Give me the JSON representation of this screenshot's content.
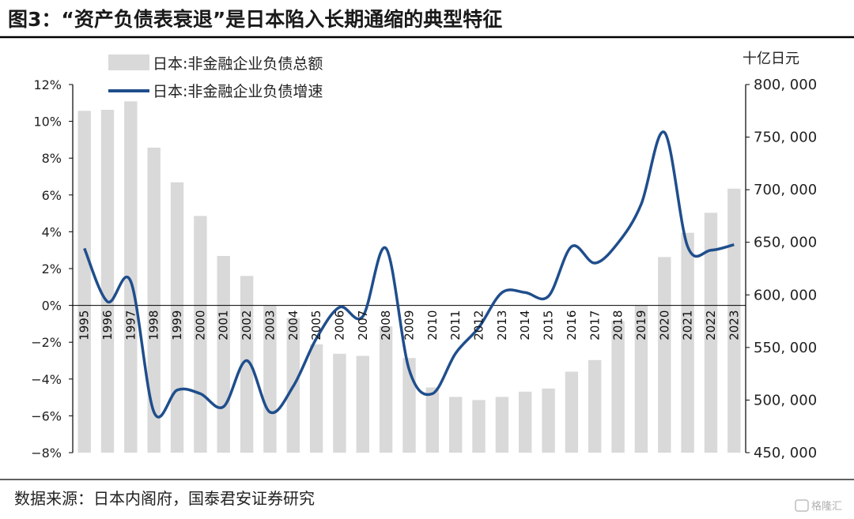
{
  "title": "图3：“资产负债表衰退”是日本陷入长期通缩的典型特征",
  "source": "数据来源：日本内阁府，国泰君安证券研究",
  "watermark": "格隆汇",
  "colors": {
    "bars": "#d9d9d9",
    "line": "#1f4e8c",
    "title_rule": "#000000"
  },
  "chart_data": {
    "type": "bar+line",
    "categories": [
      "1995",
      "1996",
      "1997",
      "1998",
      "1999",
      "2000",
      "2001",
      "2002",
      "2003",
      "2004",
      "2005",
      "2006",
      "2007",
      "2008",
      "2009",
      "2010",
      "2011",
      "2012",
      "2013",
      "2014",
      "2015",
      "2016",
      "2017",
      "2018",
      "2019",
      "2020",
      "2021",
      "2022",
      "2023"
    ],
    "y_left": {
      "ylim": [
        -8,
        12
      ],
      "ticks": [
        "12%",
        "10%",
        "8%",
        "6%",
        "4%",
        "2%",
        "0%",
        "−2%",
        "−4%",
        "−6%",
        "−8%"
      ]
    },
    "y_right": {
      "unit": "十亿日元",
      "ylim": [
        450000,
        800000
      ],
      "ticks": [
        "800, 000",
        "750, 000",
        "700, 000",
        "650, 000",
        "600, 000",
        "550, 000",
        "500, 000",
        "450, 000"
      ]
    },
    "series": [
      {
        "name": "日本:非金融企业负债总额",
        "kind": "bar",
        "axis": "right",
        "values": [
          775000,
          776000,
          784000,
          740000,
          707000,
          675000,
          637000,
          618000,
          590000,
          578000,
          553000,
          544000,
          542000,
          570000,
          540000,
          512000,
          503000,
          500000,
          503000,
          508000,
          511000,
          527000,
          538000,
          575000,
          590000,
          636000,
          659000,
          678000,
          701000
        ]
      },
      {
        "name": "日本:非金融企业负债增速",
        "kind": "line",
        "axis": "left",
        "values": [
          3.1,
          0.2,
          1.3,
          -5.8,
          -4.6,
          -4.8,
          -5.5,
          -3.0,
          -5.8,
          -4.4,
          -1.8,
          -0.1,
          -0.6,
          3.1,
          -3.5,
          -4.8,
          -2.6,
          -1.2,
          0.7,
          0.7,
          0.5,
          3.2,
          2.3,
          3.4,
          5.5,
          9.4,
          3.2,
          3.0,
          3.3
        ]
      }
    ],
    "legend_position": "top-left",
    "grid": false
  }
}
